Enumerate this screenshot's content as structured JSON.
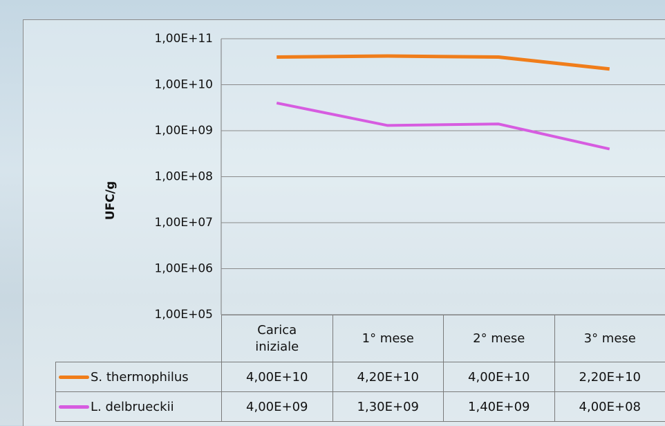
{
  "chart_data": {
    "type": "line",
    "y_label": "UFC/g",
    "log_scale": true,
    "grid": true,
    "categories": [
      "Carica iniziale",
      "1° mese",
      "2° mese",
      "3° mese"
    ],
    "series": [
      {
        "name": "S. thermophilus",
        "color": "#f07d1a",
        "values": [
          40000000000,
          42000000000,
          40000000000,
          22000000000
        ],
        "value_labels": [
          "4,00E+10",
          "4,20E+10",
          "4,00E+10",
          "2,20E+10"
        ]
      },
      {
        "name": "L. delbrueckii",
        "color": "#d65ce0",
        "values": [
          4000000000,
          1300000000,
          1400000000,
          400000000
        ],
        "value_labels": [
          "4,00E+09",
          "1,30E+09",
          "1,40E+09",
          "4,00E+08"
        ]
      }
    ],
    "ylim": [
      100000,
      100000000000
    ],
    "yticks": [
      {
        "value": 100000,
        "label": "1,00E+05"
      },
      {
        "value": 1000000,
        "label": "1,00E+06"
      },
      {
        "value": 10000000,
        "label": "1,00E+07"
      },
      {
        "value": 100000000,
        "label": "1,00E+08"
      },
      {
        "value": 1000000000,
        "label": "1,00E+09"
      },
      {
        "value": 10000000000,
        "label": "1,00E+10"
      },
      {
        "value": 100000000000,
        "label": "1,00E+11"
      }
    ]
  }
}
